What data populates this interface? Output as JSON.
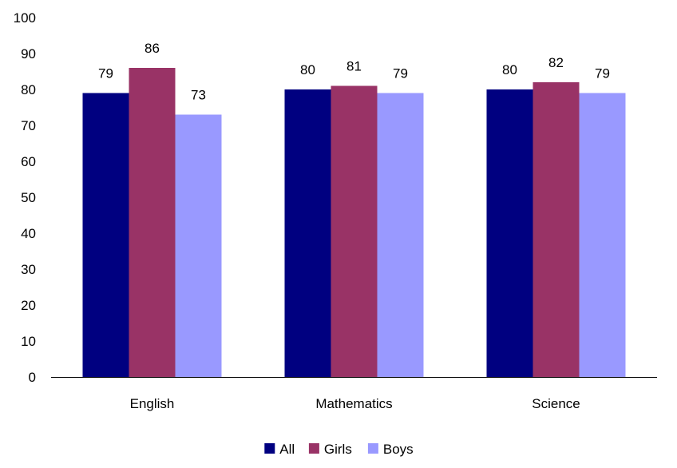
{
  "chart_data": {
    "type": "bar",
    "title": "",
    "xlabel": "",
    "ylabel": "",
    "categories": [
      "English",
      "Mathematics",
      "Science"
    ],
    "series": [
      {
        "name": "All",
        "values": [
          79,
          80,
          80
        ],
        "color": "#000080"
      },
      {
        "name": "Girls",
        "values": [
          86,
          81,
          82
        ],
        "color": "#993366"
      },
      {
        "name": "Boys",
        "values": [
          73,
          79,
          79
        ],
        "color": "#9999FF"
      }
    ],
    "ylim": [
      0,
      100
    ],
    "yticks": [
      "0",
      "10",
      "20",
      "30",
      "40",
      "50",
      "60",
      "70",
      "80",
      "90",
      "100"
    ],
    "data_labels": true,
    "grid": false,
    "legend_position": "bottom"
  }
}
